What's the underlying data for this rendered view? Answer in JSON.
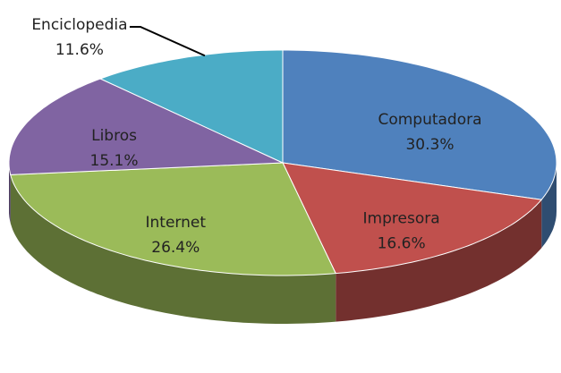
{
  "chart_data": {
    "type": "pie",
    "categories": [
      "Computadora",
      "Impresora",
      "Internet",
      "Libros",
      "Enciclopedia"
    ],
    "values": [
      30.3,
      16.6,
      26.4,
      15.1,
      11.6
    ],
    "value_labels": [
      "30.3%",
      "16.6%",
      "26.4%",
      "15.1%",
      "11.6%"
    ],
    "colors": [
      "#4f81bd",
      "#c0504d",
      "#9bbb59",
      "#8064a2",
      "#4bacc6"
    ]
  }
}
